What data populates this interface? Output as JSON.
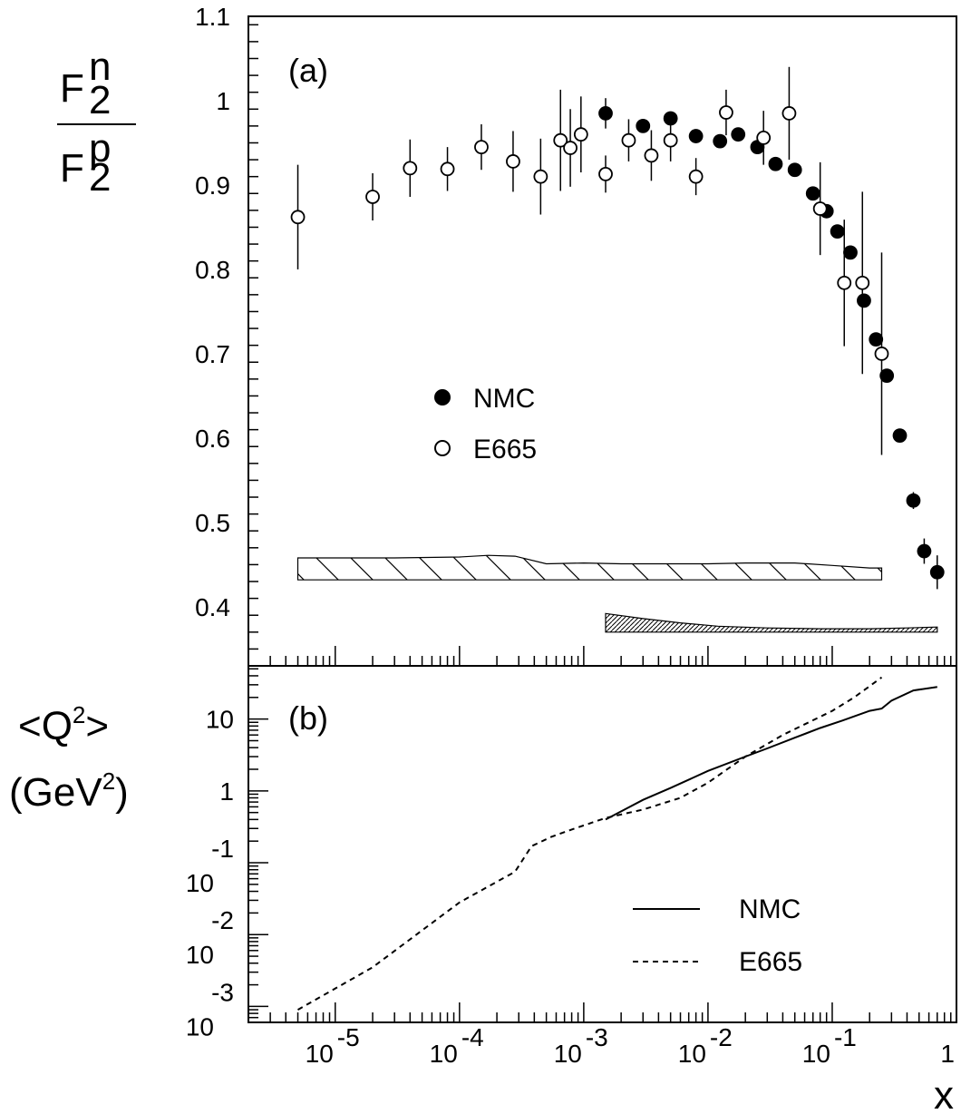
{
  "chart_data": [
    {
      "panel": "(a)",
      "type": "scatter",
      "x_scale": "log",
      "xlim": [
        2e-06,
        1
      ],
      "ylim": [
        0.33,
        1.1
      ],
      "y_ticks": [
        "0.4",
        "0.5",
        "0.6",
        "0.7",
        "0.8",
        "0.9",
        "1",
        "1.1"
      ],
      "ylabel": {
        "numerator_base": "F",
        "numerator_sub": "2",
        "numerator_sup": "n",
        "denominator_base": "F",
        "denominator_sub": "2",
        "denominator_sup": "p"
      },
      "legend": {
        "position": "center-left",
        "entries": [
          {
            "label": "NMC",
            "marker": "filled-circle"
          },
          {
            "label": "E665",
            "marker": "open-circle"
          }
        ]
      },
      "series": [
        {
          "name": "NMC",
          "marker": "filled",
          "points": [
            {
              "x": 0.0015,
              "y": 0.985,
              "err": 0.018
            },
            {
              "x": 0.003,
              "y": 0.97,
              "err": 0.008
            },
            {
              "x": 0.005,
              "y": 0.979,
              "err": 0.008
            },
            {
              "x": 0.008,
              "y": 0.958,
              "err": 0.004
            },
            {
              "x": 0.0125,
              "y": 0.952,
              "err": 0.004
            },
            {
              "x": 0.0175,
              "y": 0.96,
              "err": 0.004
            },
            {
              "x": 0.025,
              "y": 0.945,
              "err": 0.004
            },
            {
              "x": 0.035,
              "y": 0.925,
              "err": 0.004
            },
            {
              "x": 0.05,
              "y": 0.918,
              "err": 0.004
            },
            {
              "x": 0.07,
              "y": 0.89,
              "err": 0.004
            },
            {
              "x": 0.09,
              "y": 0.869,
              "err": 0.004
            },
            {
              "x": 0.11,
              "y": 0.845,
              "err": 0.004
            },
            {
              "x": 0.14,
              "y": 0.82,
              "err": 0.004
            },
            {
              "x": 0.18,
              "y": 0.763,
              "err": 0.004
            },
            {
              "x": 0.225,
              "y": 0.717,
              "err": 0.005
            },
            {
              "x": 0.275,
              "y": 0.674,
              "err": 0.006
            },
            {
              "x": 0.35,
              "y": 0.603,
              "err": 0.007
            },
            {
              "x": 0.45,
              "y": 0.526,
              "err": 0.01
            },
            {
              "x": 0.55,
              "y": 0.466,
              "err": 0.015
            },
            {
              "x": 0.7,
              "y": 0.441,
              "err": 0.02
            }
          ]
        },
        {
          "name": "E665",
          "marker": "open",
          "points": [
            {
              "x": 5e-06,
              "y": 0.862,
              "err": 0.062
            },
            {
              "x": 2e-05,
              "y": 0.886,
              "err": 0.028
            },
            {
              "x": 4e-05,
              "y": 0.92,
              "err": 0.034
            },
            {
              "x": 8e-05,
              "y": 0.919,
              "err": 0.026
            },
            {
              "x": 0.00015,
              "y": 0.945,
              "err": 0.027
            },
            {
              "x": 0.00027,
              "y": 0.928,
              "err": 0.036
            },
            {
              "x": 0.00045,
              "y": 0.91,
              "err": 0.045
            },
            {
              "x": 0.00065,
              "y": 0.953,
              "err": 0.06
            },
            {
              "x": 0.00078,
              "y": 0.944,
              "err": 0.046
            },
            {
              "x": 0.00095,
              "y": 0.96,
              "err": 0.045
            },
            {
              "x": 0.0015,
              "y": 0.913,
              "err": 0.022
            },
            {
              "x": 0.0023,
              "y": 0.953,
              "err": 0.025
            },
            {
              "x": 0.0035,
              "y": 0.935,
              "err": 0.03
            },
            {
              "x": 0.005,
              "y": 0.953,
              "err": 0.025
            },
            {
              "x": 0.008,
              "y": 0.91,
              "err": 0.022
            },
            {
              "x": 0.014,
              "y": 0.986,
              "err": 0.027
            },
            {
              "x": 0.028,
              "y": 0.956,
              "err": 0.032
            },
            {
              "x": 0.045,
              "y": 0.985,
              "err": 0.055
            },
            {
              "x": 0.08,
              "y": 0.872,
              "err": 0.055
            },
            {
              "x": 0.125,
              "y": 0.784,
              "err": 0.075
            },
            {
              "x": 0.175,
              "y": 0.784,
              "err": 0.108
            },
            {
              "x": 0.25,
              "y": 0.7,
              "err": 0.12
            }
          ]
        }
      ],
      "systematic_bands": [
        {
          "name": "E665",
          "x_start": 5e-06,
          "x_end": 0.25,
          "y_low": 0.432,
          "y_high": [
            0.458,
            0.458,
            0.459,
            0.461,
            0.46,
            0.451,
            0.452,
            0.451,
            0.451,
            0.451,
            0.452,
            0.452,
            0.449,
            0.446,
            0.446
          ],
          "x_nodes": [
            5e-06,
            3e-05,
            0.0001,
            0.00017,
            0.00028,
            0.0005,
            0.001,
            0.002,
            0.005,
            0.01,
            0.02,
            0.05,
            0.1,
            0.2,
            0.25
          ]
        },
        {
          "name": "NMC",
          "x_start": 0.0015,
          "x_end": 0.7,
          "y_low": 0.37,
          "y_high": [
            0.392,
            0.386,
            0.381,
            0.377,
            0.375,
            0.374,
            0.374,
            0.375,
            0.376
          ],
          "x_nodes": [
            0.0015,
            0.003,
            0.006,
            0.012,
            0.03,
            0.08,
            0.2,
            0.4,
            0.7
          ]
        }
      ]
    },
    {
      "panel": "(b)",
      "type": "line",
      "x_scale": "log",
      "y_scale": "log",
      "xlim": [
        2e-06,
        1
      ],
      "ylim": [
        0.0006,
        55
      ],
      "xlabel": "x",
      "x_ticks": [
        {
          "base": "10",
          "exp": "-5"
        },
        {
          "base": "10",
          "exp": "-4"
        },
        {
          "base": "10",
          "exp": "-3"
        },
        {
          "base": "10",
          "exp": "-2"
        },
        {
          "base": "10",
          "exp": "-1"
        },
        {
          "base": "1",
          "exp": ""
        }
      ],
      "y_ticks": [
        {
          "base": "10",
          "exp": "-3"
        },
        {
          "base": "10",
          "exp": "-2"
        },
        {
          "base": "10",
          "exp": "-1"
        },
        {
          "base": "1",
          "exp": ""
        },
        {
          "base": "10",
          "exp": ""
        }
      ],
      "ylabel": {
        "line1_pre": "<Q",
        "line1_sup": "2",
        "line1_post": ">",
        "line2_pre": "(GeV",
        "line2_sup": "2",
        "line2_post": ")"
      },
      "legend": {
        "position": "bottom-right",
        "entries": [
          {
            "label": "NMC",
            "style": "solid"
          },
          {
            "label": "E665",
            "style": "dashed"
          }
        ]
      },
      "series": [
        {
          "name": "NMC",
          "style": "solid",
          "x": [
            0.0015,
            0.003,
            0.005,
            0.01,
            0.02,
            0.03,
            0.05,
            0.08,
            0.12,
            0.2,
            0.25,
            0.3,
            0.45,
            0.7
          ],
          "y": [
            0.4,
            0.75,
            1.1,
            1.9,
            3.0,
            3.9,
            5.5,
            7.5,
            9.5,
            13.0,
            14.0,
            18.0,
            25.0,
            28.0
          ]
        },
        {
          "name": "E665",
          "style": "dashed",
          "x": [
            5e-06,
            2e-05,
            0.0001,
            0.00028,
            0.00038,
            0.00055,
            0.0008,
            0.0015,
            0.003,
            0.006,
            0.01,
            0.02,
            0.04,
            0.1,
            0.15,
            0.25
          ],
          "y": [
            0.0009,
            0.0035,
            0.028,
            0.075,
            0.17,
            0.23,
            0.29,
            0.42,
            0.55,
            0.8,
            1.3,
            3.0,
            6.0,
            13.0,
            20.0,
            38.0
          ]
        }
      ]
    }
  ]
}
